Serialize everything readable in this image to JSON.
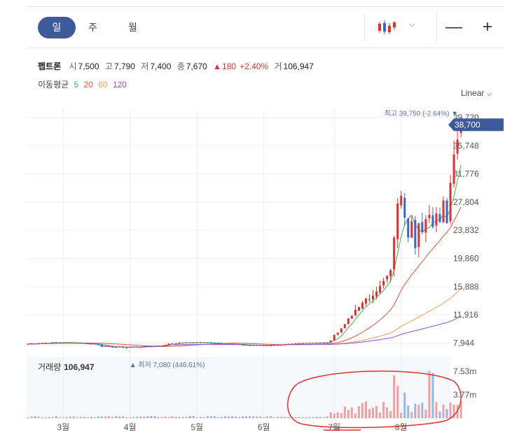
{
  "tabs": [
    {
      "label": "일",
      "active": true
    },
    {
      "label": "주",
      "active": false
    },
    {
      "label": "월",
      "active": false
    }
  ],
  "toolbar": {
    "chart_type_icon": "candlestick-icon",
    "dropdown_icon": "chevron-down-icon",
    "zoom_out": "—",
    "zoom_in": "+"
  },
  "quote": {
    "name": "펩트론",
    "open_label": "시",
    "open": "7,500",
    "high_label": "고",
    "high": "7,790",
    "low_label": "저",
    "low": "7,400",
    "close_label": "종",
    "close": "7,670",
    "change_arrow": "▲",
    "change": "180",
    "change_pct": "+2.40%",
    "volume_label": "거",
    "volume": "106,947"
  },
  "ma": {
    "label": "이동평균",
    "items": [
      {
        "period": "5",
        "color": "#3bb54a"
      },
      {
        "period": "20",
        "color": "#e8503a"
      },
      {
        "period": "60",
        "color": "#f0a050"
      },
      {
        "period": "120",
        "color": "#8a4fe0"
      }
    ]
  },
  "scale": {
    "label": "Linear",
    "dropdown_icon": "chevron-down-icon"
  },
  "volume_panel": {
    "label": "거래량",
    "value": "106,947"
  },
  "chart_data": {
    "type": "candlestick",
    "y_ticks": [
      "39,720",
      "35,748",
      "31,776",
      "27,804",
      "23,832",
      "19,860",
      "15,888",
      "11,916",
      "7,944"
    ],
    "y_tick_values": [
      39720,
      35748,
      31776,
      27804,
      23832,
      19860,
      15888,
      11916,
      7944
    ],
    "ylim": [
      6500,
      41000
    ],
    "current_price_label": "38,700",
    "current_price": 38700,
    "high_annotation": "최고 39,750 (-2.64%)",
    "low_annotation": "최저 7,080 (446.61%)",
    "high_marker": "▼",
    "low_marker": "▲",
    "x_labels": [
      "3월",
      "4월",
      "5월",
      "6월",
      "7월",
      "8월"
    ],
    "x_label_index": [
      10,
      29,
      48,
      67,
      87,
      106
    ],
    "n_days": 118,
    "volume_ticks": [
      "7.53m",
      "3.77m"
    ],
    "volume_tick_values": [
      7530000,
      3770000
    ],
    "colors": {
      "up": "#e0302f",
      "down": "#2f6ad8",
      "ma5": "#3bb54a",
      "ma20": "#e8503a",
      "ma60": "#f0a050",
      "ma120": "#8a4fe0",
      "vol_up": "#f0a0a0",
      "vol_down": "#90b8f0",
      "highlight_circle": "#e0302f"
    }
  }
}
